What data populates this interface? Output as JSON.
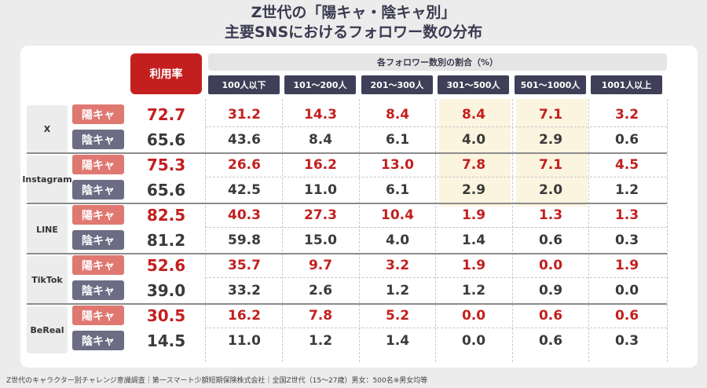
{
  "title": {
    "line1": "Z世代の「陽キャ・陰キャ別」",
    "line2": "主要SNSにおけるフォロワー数の分布"
  },
  "header": {
    "usage_label": "利用率",
    "share_label": "各フォロワー数別の割合（%）"
  },
  "footer": "Z世代のキャラクター別チャレンジ意識調査｜第一スマート少額短期保険株式会社｜全国Z世代（15〜27歳）男女：500名※男女均等",
  "colors": {
    "accent_red": "#c41f1f",
    "yo_badge": "#e07872",
    "in_badge": "#6c6c84",
    "header_dark": "#3f3f58",
    "highlight": "#fbf4df"
  },
  "chart_data": {
    "type": "table",
    "columns": [
      "100人以下",
      "101〜200人",
      "201〜300人",
      "301〜500人",
      "501〜1000人",
      "1001人以上"
    ],
    "highlighted_columns": [
      "301〜500人",
      "501〜1000人"
    ],
    "platforms": [
      {
        "name_lines": [
          "X"
        ],
        "rows": [
          {
            "type": "陽キャ",
            "usage": "72.7",
            "values": [
              "31.2",
              "14.3",
              "8.4",
              "8.4",
              "7.1",
              "3.2"
            ]
          },
          {
            "type": "陰キャ",
            "usage": "65.6",
            "values": [
              "43.6",
              "8.4",
              "6.1",
              "4.0",
              "2.9",
              "0.6"
            ]
          }
        ]
      },
      {
        "name_lines": [
          "Insta",
          "gram"
        ],
        "rows": [
          {
            "type": "陽キャ",
            "usage": "75.3",
            "values": [
              "26.6",
              "16.2",
              "13.0",
              "7.8",
              "7.1",
              "4.5"
            ]
          },
          {
            "type": "陰キャ",
            "usage": "65.6",
            "values": [
              "42.5",
              "11.0",
              "6.1",
              "2.9",
              "2.0",
              "1.2"
            ]
          }
        ]
      },
      {
        "name_lines": [
          "LINE"
        ],
        "rows": [
          {
            "type": "陽キャ",
            "usage": "82.5",
            "values": [
              "40.3",
              "27.3",
              "10.4",
              "1.9",
              "1.3",
              "1.3"
            ]
          },
          {
            "type": "陰キャ",
            "usage": "81.2",
            "values": [
              "59.8",
              "15.0",
              "4.0",
              "1.4",
              "0.6",
              "0.3"
            ]
          }
        ]
      },
      {
        "name_lines": [
          "Tik",
          "Tok"
        ],
        "rows": [
          {
            "type": "陽キャ",
            "usage": "52.6",
            "values": [
              "35.7",
              "9.7",
              "3.2",
              "1.9",
              "0.0",
              "1.9"
            ]
          },
          {
            "type": "陰キャ",
            "usage": "39.0",
            "values": [
              "33.2",
              "2.6",
              "1.2",
              "1.2",
              "0.9",
              "0.0"
            ]
          }
        ]
      },
      {
        "name_lines": [
          "Be",
          "Real"
        ],
        "rows": [
          {
            "type": "陽キャ",
            "usage": "30.5",
            "values": [
              "16.2",
              "7.8",
              "5.2",
              "0.0",
              "0.6",
              "0.6"
            ]
          },
          {
            "type": "陰キャ",
            "usage": "14.5",
            "values": [
              "11.0",
              "1.2",
              "1.4",
              "0.0",
              "0.6",
              "0.3"
            ]
          }
        ]
      }
    ]
  }
}
